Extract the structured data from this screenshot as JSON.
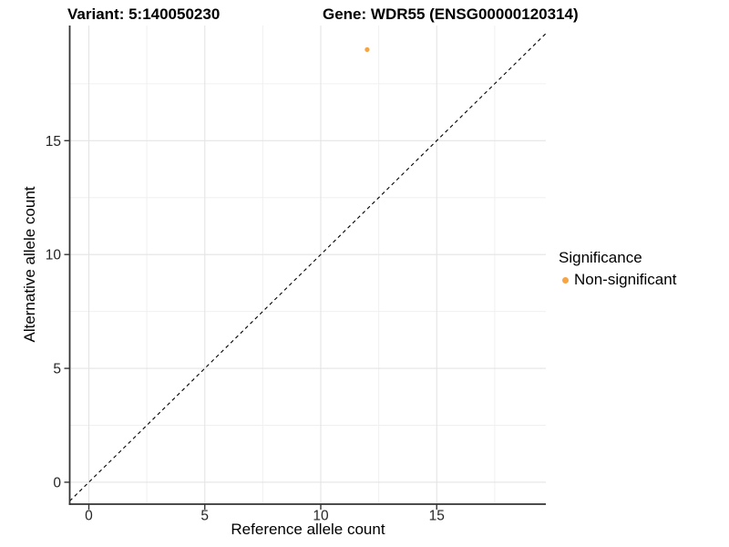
{
  "titles": {
    "variant": "Variant: 5:140050230",
    "gene": "Gene: WDR55 (ENSG00000120314)"
  },
  "chart_data": {
    "type": "scatter",
    "title_left": "Variant: 5:140050230",
    "title_right": "Gene: WDR55 (ENSG00000120314)",
    "xlabel": "Reference allele count",
    "ylabel": "Alternative allele count",
    "xlim": [
      -0.825,
      19.705
    ],
    "ylim": [
      -0.963,
      20.057
    ],
    "x_ticks": [
      0,
      5,
      10,
      15
    ],
    "y_ticks": [
      0,
      5,
      10,
      15
    ],
    "x_minor_ticks": [
      2.5,
      7.5,
      12.5,
      17.5
    ],
    "y_minor_ticks": [
      2.5,
      7.5,
      12.5,
      17.5
    ],
    "grid": true,
    "points": [
      {
        "x": 12,
        "y": 19,
        "series": "Non-significant"
      }
    ],
    "reference_line": {
      "kind": "abline",
      "slope": 1,
      "intercept": 0,
      "style": "dashed",
      "color": "#000000"
    },
    "legend": {
      "title": "Significance",
      "position": "right",
      "items": [
        {
          "label": "Non-significant",
          "color": "#F8A541"
        }
      ]
    },
    "colors": {
      "point": "#F8A541",
      "axis_line": "#333333",
      "tick_label": "#262626",
      "grid_major": "#E4E4E4",
      "grid_minor": "#F0F0F0",
      "background": "#FFFFFF"
    }
  }
}
